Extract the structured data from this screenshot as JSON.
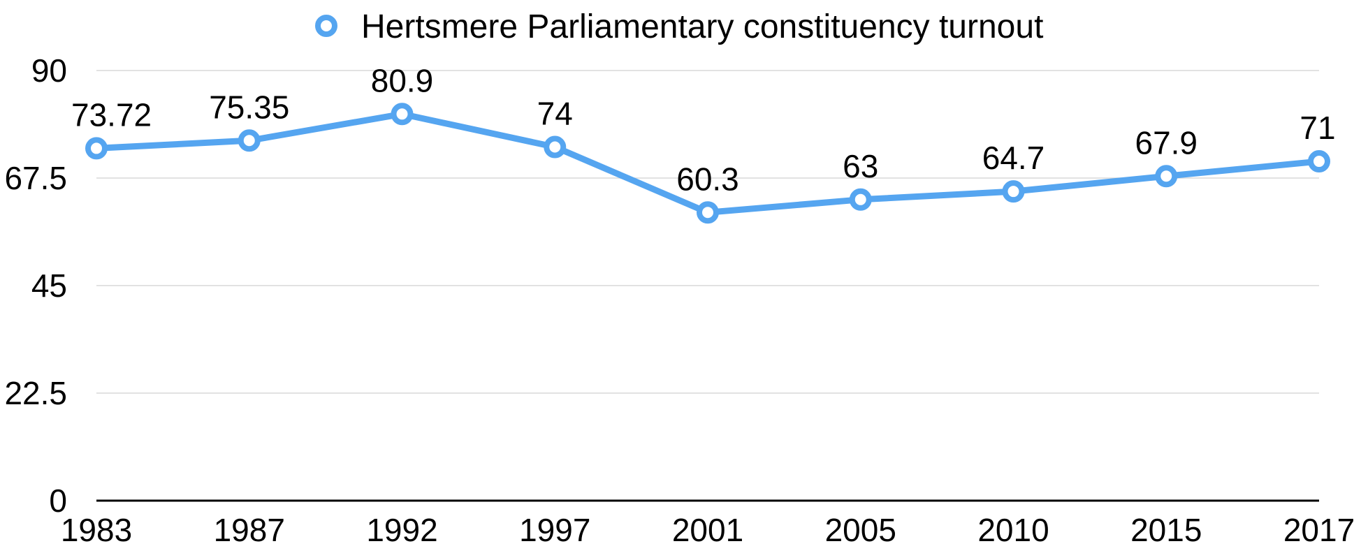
{
  "chart_data": {
    "type": "line",
    "title": "",
    "xlabel": "",
    "ylabel": "",
    "categories": [
      "1983",
      "1987",
      "1992",
      "1997",
      "2001",
      "2005",
      "2010",
      "2015",
      "2017"
    ],
    "series": [
      {
        "name": "Hertsmere Parliamentary constituency turnout",
        "values": [
          73.72,
          75.35,
          80.9,
          74,
          60.3,
          63,
          64.7,
          67.9,
          71
        ],
        "data_labels": [
          "73.72",
          "75.35",
          "80.9",
          "74",
          "60.3",
          "63",
          "64.7",
          "67.9",
          "71"
        ]
      }
    ],
    "ylim": [
      0,
      90
    ],
    "yticks": [
      0,
      22.5,
      45,
      67.5,
      90
    ],
    "ytick_labels": [
      "0",
      "22.5",
      "45",
      "67.5",
      "90"
    ],
    "grid": true,
    "legend": "top-center",
    "colors": {
      "series": "#55a5f0",
      "axis": "#000000",
      "grid": "#d9d9d9"
    }
  }
}
